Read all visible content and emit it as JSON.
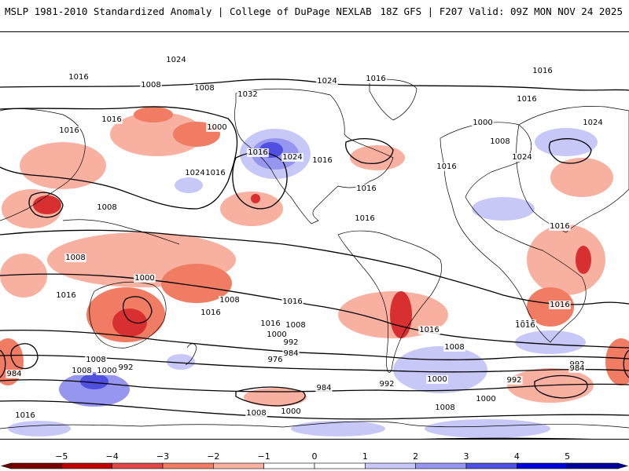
{
  "header": {
    "left_title": "MSLP 1981-2010 Standardized Anomaly | College of DuPage NEXLAB",
    "right_title": "18Z GFS | F207 Valid: 09Z MON NOV 24 2025"
  },
  "colorbar": {
    "ticks": [
      "−5",
      "−4",
      "−3",
      "−2",
      "−1",
      "0",
      "1",
      "2",
      "3",
      "4",
      "5"
    ],
    "colors": [
      "#7a0000",
      "#c00000",
      "#e04848",
      "#f07c64",
      "#f8b0a0",
      "#ffffff",
      "#ffffff",
      "#c8c8f8",
      "#9696f0",
      "#5050e0",
      "#0000d8",
      "#0000a0"
    ]
  },
  "map": {
    "anomaly_colors": {
      "neg_light": "#f8b0a0",
      "neg_mid": "#f07c64",
      "neg_strong": "#d83030",
      "pos_light": "#c8c8f8",
      "pos_mid": "#9696f0",
      "pos_strong": "#5050e0"
    },
    "isobar_labels": [
      {
        "text": "1024"
      },
      {
        "text": "1016"
      },
      {
        "text": "1008"
      },
      {
        "text": "1008"
      },
      {
        "text": "1032"
      },
      {
        "text": "1024"
      },
      {
        "text": "1016"
      },
      {
        "text": "1016"
      },
      {
        "text": "1016"
      },
      {
        "text": "1016"
      },
      {
        "text": "1016"
      },
      {
        "text": "1000"
      },
      {
        "text": "1008"
      },
      {
        "text": "1024"
      },
      {
        "text": "1016"
      },
      {
        "text": "1024"
      },
      {
        "text": "1016"
      },
      {
        "text": "1000"
      },
      {
        "text": "1008"
      },
      {
        "text": "1024"
      },
      {
        "text": "1016"
      },
      {
        "text": "1024"
      },
      {
        "text": "1016"
      },
      {
        "text": "1016"
      },
      {
        "text": "1008"
      },
      {
        "text": "1016"
      },
      {
        "text": "1016"
      },
      {
        "text": "1016"
      },
      {
        "text": "1008"
      },
      {
        "text": "1000"
      },
      {
        "text": "1008"
      },
      {
        "text": "1016"
      },
      {
        "text": "1016"
      },
      {
        "text": "1016"
      },
      {
        "text": "1016"
      },
      {
        "text": "1016"
      },
      {
        "text": "1016"
      },
      {
        "text": "1008"
      },
      {
        "text": "1000"
      },
      {
        "text": "992"
      },
      {
        "text": "984"
      },
      {
        "text": "976"
      },
      {
        "text": "1008"
      },
      {
        "text": "1008"
      },
      {
        "text": "1000"
      },
      {
        "text": "992"
      },
      {
        "text": "984"
      },
      {
        "text": "992"
      },
      {
        "text": "984"
      },
      {
        "text": "992"
      },
      {
        "text": "1016"
      },
      {
        "text": "1008"
      },
      {
        "text": "1000"
      },
      {
        "text": "1008"
      },
      {
        "text": "1000"
      },
      {
        "text": "992"
      },
      {
        "text": "984"
      },
      {
        "text": "1000"
      },
      {
        "text": "1008"
      },
      {
        "text": "1016"
      }
    ]
  }
}
